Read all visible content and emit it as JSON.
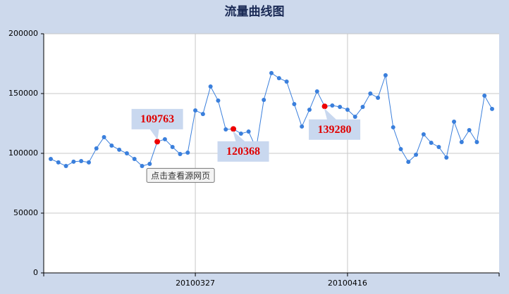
{
  "chart_data": {
    "type": "line",
    "title": "流量曲线图",
    "categories": [
      null,
      null,
      null,
      null,
      null,
      null,
      null,
      null,
      null,
      null,
      null,
      null,
      null,
      null,
      null,
      null,
      null,
      null,
      null,
      "20100327",
      null,
      null,
      null,
      null,
      null,
      null,
      null,
      null,
      null,
      null,
      null,
      null,
      null,
      null,
      null,
      null,
      null,
      null,
      null,
      "20100416",
      null,
      null,
      null,
      null,
      null,
      null,
      null,
      null,
      null,
      null,
      null,
      null,
      null,
      null,
      null,
      null,
      null,
      null,
      null
    ],
    "values": [
      95300,
      92400,
      89400,
      93000,
      93500,
      92400,
      104100,
      113500,
      106500,
      103000,
      100000,
      95300,
      89400,
      91200,
      109763,
      111800,
      105300,
      99400,
      100600,
      135900,
      132900,
      155900,
      144100,
      120000,
      120368,
      116500,
      118200,
      104100,
      144700,
      167100,
      162900,
      160000,
      141200,
      122400,
      136500,
      151800,
      139280,
      140000,
      138800,
      136500,
      130600,
      138800,
      150000,
      146500,
      165300,
      121800,
      103500,
      92900,
      98800,
      115900,
      108800,
      105300,
      96500,
      126500,
      109400,
      119400,
      109400,
      148200,
      137100
    ],
    "color": "#3a7fdc",
    "highlight_indices": [
      14,
      24,
      36
    ],
    "highlight_color": "#ee0000",
    "ylim": [
      0,
      200000
    ],
    "yticks": [
      0,
      50000,
      100000,
      150000,
      200000
    ],
    "grid": true,
    "tooltip": "点击查看源网页"
  }
}
